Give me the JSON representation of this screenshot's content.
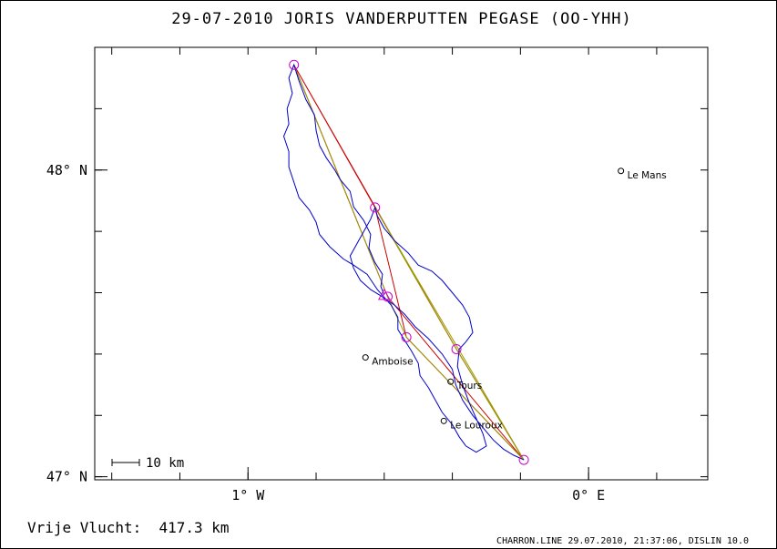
{
  "chart_data": {
    "type": "line",
    "title": "29-07-2010    JORIS VANDERPUTTEN    PEGASE (OO-YHH)",
    "x_axis": {
      "range_deg": [
        -1.45,
        0.35
      ],
      "ticks": [
        {
          "value": -1.0,
          "label": "1° W"
        },
        {
          "value": 0.0,
          "label": "0° E"
        }
      ]
    },
    "y_axis": {
      "range_deg": [
        46.99,
        48.4
      ],
      "ticks": [
        {
          "value": 48.0,
          "label": "48° N"
        },
        {
          "value": 47.0,
          "label": "47° N"
        }
      ]
    },
    "grid": false,
    "cities": [
      {
        "name": "Le Mans",
        "lon": 0.095,
        "lat": 47.997
      },
      {
        "name": "Amboise",
        "lon": -0.655,
        "lat": 47.389
      },
      {
        "name": "Tours",
        "lon": -0.405,
        "lat": 47.31
      },
      {
        "name": "Le Louroux",
        "lon": -0.425,
        "lat": 47.182
      }
    ],
    "turnpoints": [
      {
        "lon": -0.865,
        "lat": 48.343
      },
      {
        "lon": -0.627,
        "lat": 47.878
      },
      {
        "lon": -0.59,
        "lat": 47.587
      },
      {
        "lon": -0.535,
        "lat": 47.455
      },
      {
        "lon": -0.388,
        "lat": 47.416
      },
      {
        "lon": -0.19,
        "lat": 47.055
      }
    ],
    "start_marker": {
      "lon": -0.6,
      "lat": 47.593
    },
    "routes": [
      {
        "color": "#cc0000",
        "points": [
          [
            -0.865,
            48.343
          ],
          [
            -0.627,
            47.878
          ],
          [
            -0.388,
            47.416
          ],
          [
            -0.19,
            47.055
          ],
          [
            -0.535,
            47.455
          ],
          [
            -0.627,
            47.878
          ],
          [
            -0.865,
            48.343
          ],
          [
            -0.59,
            47.587
          ],
          [
            -0.19,
            47.055
          ],
          [
            -0.388,
            47.416
          ],
          [
            -0.865,
            48.343
          ]
        ]
      },
      {
        "color": "#999900",
        "points": [
          [
            -0.865,
            48.343
          ],
          [
            -0.59,
            47.587
          ],
          [
            -0.535,
            47.455
          ],
          [
            -0.19,
            47.055
          ],
          [
            -0.627,
            47.878
          ],
          [
            -0.388,
            47.416
          ],
          [
            -0.19,
            47.055
          ]
        ]
      }
    ],
    "track": {
      "color": "#0000cc",
      "points": [
        [
          -0.6,
          47.593
        ],
        [
          -0.61,
          47.62
        ],
        [
          -0.605,
          47.66
        ],
        [
          -0.628,
          47.7
        ],
        [
          -0.645,
          47.745
        ],
        [
          -0.64,
          47.79
        ],
        [
          -0.66,
          47.835
        ],
        [
          -0.69,
          47.88
        ],
        [
          -0.7,
          47.93
        ],
        [
          -0.73,
          47.97
        ],
        [
          -0.745,
          48.0
        ],
        [
          -0.77,
          48.04
        ],
        [
          -0.79,
          48.08
        ],
        [
          -0.8,
          48.13
        ],
        [
          -0.805,
          48.18
        ],
        [
          -0.83,
          48.23
        ],
        [
          -0.85,
          48.29
        ],
        [
          -0.865,
          48.343
        ],
        [
          -0.88,
          48.3
        ],
        [
          -0.87,
          48.25
        ],
        [
          -0.885,
          48.2
        ],
        [
          -0.88,
          48.15
        ],
        [
          -0.895,
          48.11
        ],
        [
          -0.88,
          48.06
        ],
        [
          -0.88,
          48.01
        ],
        [
          -0.865,
          47.96
        ],
        [
          -0.85,
          47.91
        ],
        [
          -0.82,
          47.87
        ],
        [
          -0.8,
          47.83
        ],
        [
          -0.79,
          47.79
        ],
        [
          -0.76,
          47.75
        ],
        [
          -0.72,
          47.71
        ],
        [
          -0.69,
          47.69
        ],
        [
          -0.65,
          47.66
        ],
        [
          -0.62,
          47.61
        ],
        [
          -0.58,
          47.56
        ],
        [
          -0.56,
          47.52
        ],
        [
          -0.56,
          47.48
        ],
        [
          -0.54,
          47.445
        ],
        [
          -0.52,
          47.41
        ],
        [
          -0.5,
          47.37
        ],
        [
          -0.495,
          47.33
        ],
        [
          -0.47,
          47.29
        ],
        [
          -0.45,
          47.25
        ],
        [
          -0.43,
          47.21
        ],
        [
          -0.4,
          47.17
        ],
        [
          -0.38,
          47.13
        ],
        [
          -0.36,
          47.1
        ],
        [
          -0.33,
          47.08
        ],
        [
          -0.3,
          47.1
        ],
        [
          -0.31,
          47.14
        ],
        [
          -0.33,
          47.19
        ],
        [
          -0.35,
          47.24
        ],
        [
          -0.37,
          47.3
        ],
        [
          -0.385,
          47.36
        ],
        [
          -0.38,
          47.416
        ],
        [
          -0.36,
          47.44
        ],
        [
          -0.34,
          47.47
        ],
        [
          -0.35,
          47.52
        ],
        [
          -0.37,
          47.56
        ],
        [
          -0.4,
          47.6
        ],
        [
          -0.43,
          47.64
        ],
        [
          -0.46,
          47.67
        ],
        [
          -0.5,
          47.69
        ],
        [
          -0.53,
          47.73
        ],
        [
          -0.57,
          47.77
        ],
        [
          -0.6,
          47.81
        ],
        [
          -0.62,
          47.85
        ],
        [
          -0.627,
          47.878
        ],
        [
          -0.64,
          47.84
        ],
        [
          -0.66,
          47.8
        ],
        [
          -0.68,
          47.76
        ],
        [
          -0.7,
          47.72
        ],
        [
          -0.69,
          47.68
        ],
        [
          -0.67,
          47.64
        ],
        [
          -0.64,
          47.61
        ],
        [
          -0.61,
          47.59
        ],
        [
          -0.57,
          47.56
        ],
        [
          -0.54,
          47.53
        ],
        [
          -0.51,
          47.49
        ],
        [
          -0.47,
          47.45
        ],
        [
          -0.43,
          47.4
        ],
        [
          -0.4,
          47.35
        ],
        [
          -0.39,
          47.3
        ],
        [
          -0.37,
          47.25
        ],
        [
          -0.34,
          47.2
        ],
        [
          -0.31,
          47.16
        ],
        [
          -0.28,
          47.12
        ],
        [
          -0.25,
          47.09
        ],
        [
          -0.22,
          47.07
        ],
        [
          -0.19,
          47.055
        ]
      ]
    },
    "scale_bar_label": "10 km"
  },
  "footer": {
    "distance_text": "Vrije Vlucht:  417.3 km",
    "credit_text": "CHARRON.LINE 29.07.2010, 21:37:06, DISLIN 10.0"
  },
  "colors": {
    "turnpoint": "#cc00cc",
    "track": "#0000cc",
    "route_red": "#cc0000",
    "route_olive": "#999900"
  }
}
